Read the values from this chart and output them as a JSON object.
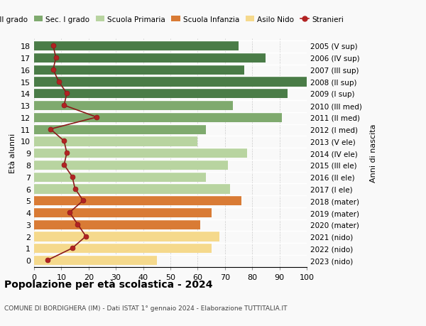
{
  "ages": [
    18,
    17,
    16,
    15,
    14,
    13,
    12,
    11,
    10,
    9,
    8,
    7,
    6,
    5,
    4,
    3,
    2,
    1,
    0
  ],
  "right_labels": [
    "2005 (V sup)",
    "2006 (IV sup)",
    "2007 (III sup)",
    "2008 (II sup)",
    "2009 (I sup)",
    "2010 (III med)",
    "2011 (II med)",
    "2012 (I med)",
    "2013 (V ele)",
    "2014 (IV ele)",
    "2015 (III ele)",
    "2016 (II ele)",
    "2017 (I ele)",
    "2018 (mater)",
    "2019 (mater)",
    "2020 (mater)",
    "2021 (nido)",
    "2022 (nido)",
    "2023 (nido)"
  ],
  "bar_values": [
    75,
    85,
    77,
    100,
    93,
    73,
    91,
    63,
    60,
    78,
    71,
    63,
    72,
    76,
    65,
    61,
    68,
    65,
    45
  ],
  "bar_colors": [
    "#4a7c47",
    "#4a7c47",
    "#4a7c47",
    "#4a7c47",
    "#4a7c47",
    "#7faa6e",
    "#7faa6e",
    "#7faa6e",
    "#b8d4a0",
    "#b8d4a0",
    "#b8d4a0",
    "#b8d4a0",
    "#b8d4a0",
    "#d97b35",
    "#d97b35",
    "#d97b35",
    "#f5d98c",
    "#f5d98c",
    "#f5d98c"
  ],
  "stranieri_values": [
    7,
    8,
    7,
    9,
    12,
    11,
    23,
    6,
    11,
    12,
    11,
    14,
    15,
    18,
    13,
    16,
    19,
    14,
    5
  ],
  "legend_labels": [
    "Sec. II grado",
    "Sec. I grado",
    "Scuola Primaria",
    "Scuola Infanzia",
    "Asilo Nido",
    "Stranieri"
  ],
  "legend_colors": [
    "#4a7c47",
    "#7faa6e",
    "#b8d4a0",
    "#d97b35",
    "#f5d98c",
    "#b22222"
  ],
  "xlabel": "",
  "ylabel_left": "Età alunni",
  "ylabel_right": "Anni di nascita",
  "xlim": [
    0,
    100
  ],
  "title": "Popolazione per età scolastica - 2024",
  "subtitle": "COMUNE DI BORDIGHERA (IM) - Dati ISTAT 1° gennaio 2024 - Elaborazione TUTTITALIA.IT",
  "background_color": "#f9f9f9",
  "bar_background": "#ffffff"
}
